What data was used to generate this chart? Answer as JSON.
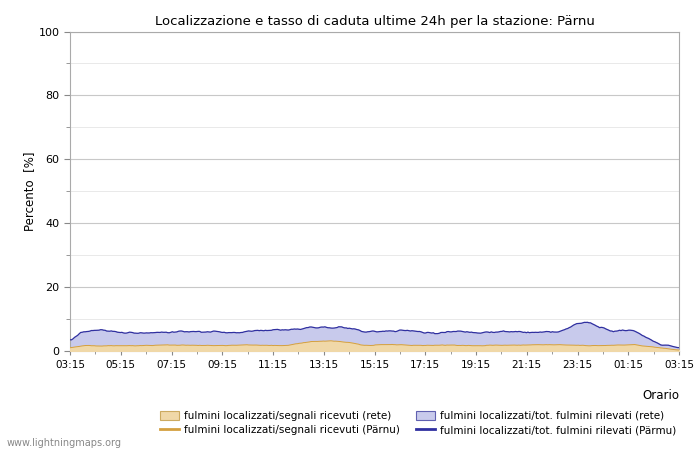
{
  "title": "Localizzazione e tasso di caduta ultime 24h per la stazione: Pärnu",
  "ylabel": "Percento  [%]",
  "xlabel": "Orario",
  "xlim_labels": [
    "03:15",
    "05:15",
    "07:15",
    "09:15",
    "11:15",
    "13:15",
    "15:15",
    "17:15",
    "19:15",
    "21:15",
    "23:15",
    "01:15",
    "03:15"
  ],
  "ylim": [
    0,
    100
  ],
  "fill_rete_color": "#f0d8a8",
  "fill_parnu_color": "#c8caec",
  "line_rete_color": "#d4a040",
  "line_parnu_color": "#3030a0",
  "background_color": "#ffffff",
  "plot_bg_color": "#ffffff",
  "grid_major_color": "#c8c8c8",
  "grid_minor_color": "#e0e0e0",
  "watermark": "www.lightningmaps.org",
  "legend_labels": [
    "fulmini localizzati/segnali ricevuti (rete)",
    "fulmini localizzati/segnali ricevuti (Pärnu)",
    "fulmini localizzati/tot. fulmini rilevati (rete)",
    "fulmini localizzati/tot. fulmini rilevati (Pärmu)"
  ],
  "figwidth": 7.0,
  "figheight": 4.5,
  "dpi": 100
}
